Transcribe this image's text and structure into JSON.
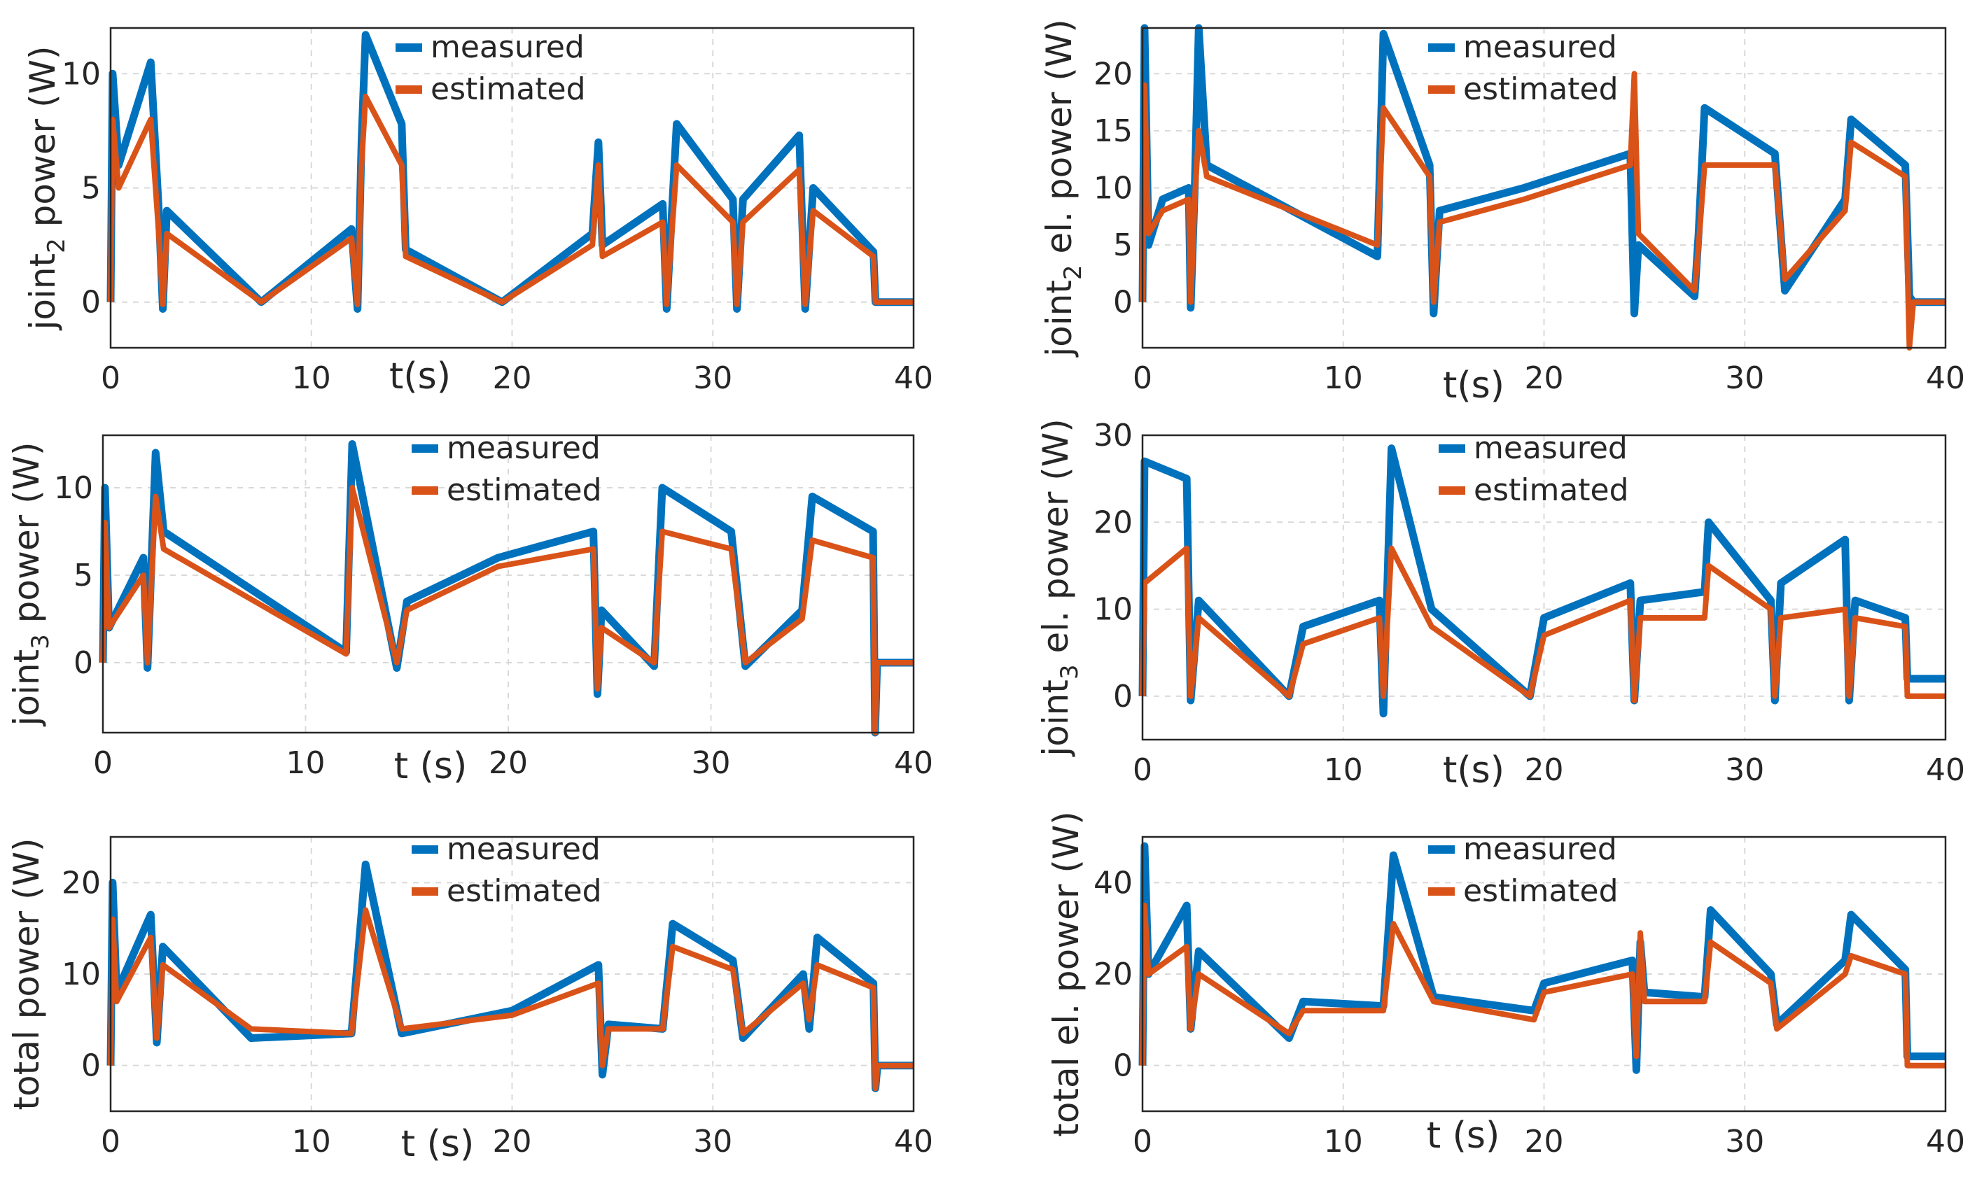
{
  "colors": {
    "measured": "#0072BD",
    "estimated": "#D95319",
    "grid": "#d9d9d9",
    "axis": "#262626"
  },
  "chart_data": [
    {
      "type": "line",
      "id": "p1",
      "ylabel_pre": "joint",
      "ylabel_sub": "2",
      "ylabel_post": " power (W)",
      "xlabel": "t(s)",
      "xlim": [
        0,
        40
      ],
      "ylim": [
        -2,
        12
      ],
      "xticks": [
        0,
        10,
        20,
        30,
        40
      ],
      "yticks": [
        0,
        5,
        10
      ],
      "legend": [
        "measured",
        "estimated"
      ],
      "estimated": [
        [
          0,
          0
        ],
        [
          0.1,
          8
        ],
        [
          0.4,
          5
        ],
        [
          2,
          8
        ],
        [
          2.4,
          3
        ],
        [
          2.6,
          -0.1
        ],
        [
          2.8,
          3
        ],
        [
          7.5,
          0
        ],
        [
          12,
          2.8
        ],
        [
          12.3,
          -0.1
        ],
        [
          12.5,
          6
        ],
        [
          12.7,
          9
        ],
        [
          14.5,
          6
        ],
        [
          14.7,
          2
        ],
        [
          19.5,
          0
        ],
        [
          24,
          2.5
        ],
        [
          24.3,
          6
        ],
        [
          24.5,
          2
        ],
        [
          27.5,
          3.5
        ],
        [
          27.7,
          -0.1
        ],
        [
          28.2,
          6
        ],
        [
          31,
          3.5
        ],
        [
          31.2,
          -0.1
        ],
        [
          31.5,
          3.5
        ],
        [
          34.3,
          5.8
        ],
        [
          34.6,
          -0.1
        ],
        [
          35,
          4
        ],
        [
          38,
          2
        ],
        [
          38.1,
          0
        ],
        [
          40,
          0
        ]
      ],
      "measured": [
        [
          0,
          0
        ],
        [
          0.1,
          10
        ],
        [
          0.4,
          6
        ],
        [
          2,
          10.5
        ],
        [
          2.4,
          4
        ],
        [
          2.6,
          -0.3
        ],
        [
          2.8,
          4
        ],
        [
          7.5,
          0
        ],
        [
          12,
          3.2
        ],
        [
          12.3,
          -0.3
        ],
        [
          12.5,
          7
        ],
        [
          12.7,
          11.7
        ],
        [
          14.5,
          7.8
        ],
        [
          14.7,
          2.3
        ],
        [
          19.5,
          0
        ],
        [
          24,
          3
        ],
        [
          24.3,
          7
        ],
        [
          24.5,
          2.5
        ],
        [
          27.5,
          4.3
        ],
        [
          27.7,
          -0.3
        ],
        [
          28.2,
          7.8
        ],
        [
          31,
          4.5
        ],
        [
          31.2,
          -0.3
        ],
        [
          31.5,
          4.5
        ],
        [
          34.3,
          7.3
        ],
        [
          34.6,
          -0.3
        ],
        [
          35,
          5
        ],
        [
          38,
          2.2
        ],
        [
          38.1,
          0
        ],
        [
          40,
          0
        ]
      ]
    },
    {
      "type": "line",
      "id": "p2",
      "ylabel_pre": "joint",
      "ylabel_sub": "2",
      "ylabel_post": " el. power (W)",
      "xlabel": "t(s)",
      "xlim": [
        0,
        40
      ],
      "ylim": [
        -4,
        24
      ],
      "xticks": [
        0,
        10,
        20,
        30,
        40
      ],
      "yticks": [
        0,
        5,
        10,
        15,
        20
      ],
      "legend": [
        "measured",
        "estimated"
      ],
      "estimated": [
        [
          0,
          0
        ],
        [
          0.1,
          19
        ],
        [
          0.3,
          6
        ],
        [
          1,
          8
        ],
        [
          2.3,
          9
        ],
        [
          2.4,
          0
        ],
        [
          2.6,
          9
        ],
        [
          2.8,
          15
        ],
        [
          3.2,
          11
        ],
        [
          11.7,
          5
        ],
        [
          12,
          17
        ],
        [
          14.3,
          11
        ],
        [
          14.5,
          0
        ],
        [
          14.8,
          7
        ],
        [
          19,
          9
        ],
        [
          24.3,
          12
        ],
        [
          24.5,
          20
        ],
        [
          24.7,
          6
        ],
        [
          27.5,
          1
        ],
        [
          27.7,
          5
        ],
        [
          28,
          12
        ],
        [
          31.5,
          12
        ],
        [
          32,
          2
        ],
        [
          35,
          8
        ],
        [
          35.3,
          14
        ],
        [
          38,
          11
        ],
        [
          38.2,
          -4
        ],
        [
          38.4,
          0
        ],
        [
          40,
          0
        ]
      ],
      "measured": [
        [
          0,
          0
        ],
        [
          0.1,
          24
        ],
        [
          0.3,
          5
        ],
        [
          1,
          9
        ],
        [
          2.3,
          10
        ],
        [
          2.4,
          -0.5
        ],
        [
          2.6,
          10
        ],
        [
          2.8,
          24
        ],
        [
          3.2,
          12
        ],
        [
          11.7,
          4
        ],
        [
          12,
          23.5
        ],
        [
          14.3,
          12
        ],
        [
          14.5,
          -1
        ],
        [
          14.8,
          8
        ],
        [
          19,
          10
        ],
        [
          24.3,
          13
        ],
        [
          24.5,
          -1
        ],
        [
          24.7,
          5
        ],
        [
          27.5,
          0.5
        ],
        [
          27.7,
          6
        ],
        [
          28,
          17
        ],
        [
          31.5,
          13
        ],
        [
          32,
          1
        ],
        [
          35,
          9
        ],
        [
          35.3,
          16
        ],
        [
          38,
          12
        ],
        [
          38.2,
          0.5
        ],
        [
          38.4,
          0
        ],
        [
          40,
          0
        ]
      ]
    },
    {
      "type": "line",
      "id": "p3",
      "ylabel_pre": "joint",
      "ylabel_sub": "3",
      "ylabel_post": " power (W)",
      "xlabel": "t (s)",
      "xlim": [
        0,
        40
      ],
      "ylim": [
        -4,
        13
      ],
      "xticks": [
        0,
        10,
        20,
        30,
        40
      ],
      "yticks": [
        0,
        5,
        10
      ],
      "legend": [
        "measured",
        "estimated"
      ],
      "estimated": [
        [
          0,
          0
        ],
        [
          0.1,
          8
        ],
        [
          0.3,
          2
        ],
        [
          2,
          5
        ],
        [
          2.2,
          0
        ],
        [
          2.6,
          9.5
        ],
        [
          3,
          6.5
        ],
        [
          12,
          0.5
        ],
        [
          12.3,
          10
        ],
        [
          14.5,
          0
        ],
        [
          15,
          3
        ],
        [
          19.5,
          5.5
        ],
        [
          24.2,
          6.5
        ],
        [
          24.4,
          -1.5
        ],
        [
          24.6,
          2
        ],
        [
          27.2,
          0
        ],
        [
          27.6,
          7.5
        ],
        [
          31,
          6.5
        ],
        [
          31.7,
          0
        ],
        [
          34.5,
          2.5
        ],
        [
          35,
          7
        ],
        [
          38,
          6
        ],
        [
          38.1,
          -4
        ],
        [
          38.2,
          0
        ],
        [
          40,
          0
        ]
      ],
      "measured": [
        [
          0,
          0
        ],
        [
          0.1,
          10
        ],
        [
          0.3,
          2
        ],
        [
          2,
          6
        ],
        [
          2.2,
          -0.3
        ],
        [
          2.6,
          12
        ],
        [
          3,
          7.5
        ],
        [
          12,
          0.6
        ],
        [
          12.3,
          12.5
        ],
        [
          14.5,
          -0.3
        ],
        [
          15,
          3.5
        ],
        [
          19.5,
          6
        ],
        [
          24.2,
          7.5
        ],
        [
          24.4,
          -1.8
        ],
        [
          24.6,
          3
        ],
        [
          27.2,
          -0.2
        ],
        [
          27.6,
          10
        ],
        [
          31,
          7.5
        ],
        [
          31.7,
          -0.2
        ],
        [
          34.5,
          3
        ],
        [
          35,
          9.5
        ],
        [
          38,
          7.5
        ],
        [
          38.1,
          -4
        ],
        [
          38.2,
          0
        ],
        [
          40,
          0
        ]
      ]
    },
    {
      "type": "line",
      "id": "p4",
      "ylabel_pre": "joint",
      "ylabel_sub": "3",
      "ylabel_post": " el. power (W)",
      "xlabel": "t(s)",
      "xlim": [
        0,
        40
      ],
      "ylim": [
        -5,
        30
      ],
      "xticks": [
        0,
        10,
        20,
        30,
        40
      ],
      "yticks": [
        0,
        10,
        20,
        30
      ],
      "legend": [
        "measured",
        "estimated"
      ],
      "estimated": [
        [
          0,
          0
        ],
        [
          0.1,
          13
        ],
        [
          2.2,
          17
        ],
        [
          2.4,
          0
        ],
        [
          2.8,
          9
        ],
        [
          7.3,
          0
        ],
        [
          8,
          6
        ],
        [
          11.8,
          9
        ],
        [
          12,
          0
        ],
        [
          12.4,
          17
        ],
        [
          14.4,
          8
        ],
        [
          19.3,
          0
        ],
        [
          20,
          7
        ],
        [
          24.3,
          11
        ],
        [
          24.5,
          -0.5
        ],
        [
          24.8,
          9
        ],
        [
          28,
          9
        ],
        [
          28.2,
          15
        ],
        [
          31.3,
          10
        ],
        [
          31.5,
          0
        ],
        [
          31.8,
          9
        ],
        [
          35,
          10
        ],
        [
          35.2,
          0
        ],
        [
          35.5,
          9
        ],
        [
          38,
          8
        ],
        [
          38.1,
          0
        ],
        [
          40,
          0
        ]
      ],
      "measured": [
        [
          0,
          0
        ],
        [
          0.1,
          27
        ],
        [
          2.2,
          25
        ],
        [
          2.4,
          -0.5
        ],
        [
          2.8,
          11
        ],
        [
          7.3,
          0
        ],
        [
          8,
          8
        ],
        [
          11.8,
          11
        ],
        [
          12,
          -2
        ],
        [
          12.4,
          28.5
        ],
        [
          14.4,
          10
        ],
        [
          19.3,
          0
        ],
        [
          20,
          9
        ],
        [
          24.3,
          13
        ],
        [
          24.5,
          -0.5
        ],
        [
          24.8,
          11
        ],
        [
          28,
          12
        ],
        [
          28.2,
          20
        ],
        [
          31.3,
          11
        ],
        [
          31.5,
          -0.5
        ],
        [
          31.8,
          13
        ],
        [
          35,
          18
        ],
        [
          35.2,
          -0.5
        ],
        [
          35.5,
          11
        ],
        [
          38,
          9
        ],
        [
          38.1,
          2
        ],
        [
          40,
          2
        ]
      ]
    },
    {
      "type": "line",
      "id": "p5",
      "ylabel_pre": "total power (W)",
      "ylabel_sub": "",
      "ylabel_post": "",
      "xlabel": "t (s)",
      "xlim": [
        0,
        40
      ],
      "ylim": [
        -5,
        25
      ],
      "xticks": [
        0,
        10,
        20,
        30,
        40
      ],
      "yticks": [
        0,
        10,
        20
      ],
      "legend": [
        "measured",
        "estimated"
      ],
      "estimated": [
        [
          0,
          0
        ],
        [
          0.1,
          16
        ],
        [
          0.3,
          7
        ],
        [
          2,
          14
        ],
        [
          2.3,
          3
        ],
        [
          2.6,
          11
        ],
        [
          7,
          4
        ],
        [
          12,
          3.5
        ],
        [
          12.7,
          17
        ],
        [
          14.5,
          4
        ],
        [
          20,
          5.5
        ],
        [
          24.3,
          9
        ],
        [
          24.5,
          0
        ],
        [
          24.8,
          4
        ],
        [
          27.5,
          4
        ],
        [
          28,
          13
        ],
        [
          31,
          10.5
        ],
        [
          31.5,
          3.5
        ],
        [
          34.5,
          9
        ],
        [
          34.8,
          5
        ],
        [
          35.2,
          11
        ],
        [
          38,
          8.5
        ],
        [
          38.1,
          -2.5
        ],
        [
          38.2,
          0
        ],
        [
          40,
          0
        ]
      ],
      "measured": [
        [
          0,
          0
        ],
        [
          0.1,
          20
        ],
        [
          0.3,
          8
        ],
        [
          2,
          16.5
        ],
        [
          2.3,
          2.5
        ],
        [
          2.6,
          13
        ],
        [
          7,
          3
        ],
        [
          12,
          3.5
        ],
        [
          12.7,
          22
        ],
        [
          14.5,
          3.5
        ],
        [
          20,
          6
        ],
        [
          24.3,
          11
        ],
        [
          24.5,
          -1
        ],
        [
          24.8,
          4.5
        ],
        [
          27.5,
          4
        ],
        [
          28,
          15.5
        ],
        [
          31,
          11.5
        ],
        [
          31.5,
          3
        ],
        [
          34.5,
          10
        ],
        [
          34.8,
          4
        ],
        [
          35.2,
          14
        ],
        [
          38,
          9
        ],
        [
          38.1,
          -2.5
        ],
        [
          38.2,
          0
        ],
        [
          40,
          0
        ]
      ]
    },
    {
      "type": "line",
      "id": "p6",
      "ylabel_pre": "total el. power (W)",
      "ylabel_sub": "",
      "ylabel_post": "",
      "xlabel": "t (s)",
      "xlim": [
        0,
        40
      ],
      "ylim": [
        -10,
        50
      ],
      "xticks": [
        0,
        10,
        20,
        30,
        40
      ],
      "yticks": [
        0,
        20,
        40
      ],
      "legend": [
        "measured",
        "estimated"
      ],
      "estimated": [
        [
          0,
          0
        ],
        [
          0.1,
          35
        ],
        [
          0.3,
          20
        ],
        [
          2.2,
          26
        ],
        [
          2.4,
          8
        ],
        [
          2.8,
          20
        ],
        [
          7.3,
          7
        ],
        [
          8,
          12
        ],
        [
          12,
          12
        ],
        [
          12.5,
          31
        ],
        [
          14.5,
          14
        ],
        [
          19.5,
          10
        ],
        [
          20,
          16
        ],
        [
          24.4,
          20
        ],
        [
          24.6,
          2
        ],
        [
          24.8,
          29
        ],
        [
          25,
          14
        ],
        [
          28,
          14
        ],
        [
          28.3,
          27
        ],
        [
          31.3,
          18
        ],
        [
          31.6,
          8
        ],
        [
          35,
          20
        ],
        [
          35.3,
          24
        ],
        [
          38,
          20
        ],
        [
          38.1,
          0
        ],
        [
          40,
          0
        ]
      ],
      "measured": [
        [
          0,
          0
        ],
        [
          0.1,
          48
        ],
        [
          0.3,
          20
        ],
        [
          2.2,
          35
        ],
        [
          2.4,
          8
        ],
        [
          2.8,
          25
        ],
        [
          7.3,
          6
        ],
        [
          8,
          14
        ],
        [
          12,
          13
        ],
        [
          12.5,
          46
        ],
        [
          14.5,
          15
        ],
        [
          19.5,
          12
        ],
        [
          20,
          18
        ],
        [
          24.4,
          23
        ],
        [
          24.6,
          -1
        ],
        [
          24.8,
          27
        ],
        [
          25,
          16
        ],
        [
          28,
          15
        ],
        [
          28.3,
          34
        ],
        [
          31.3,
          20
        ],
        [
          31.6,
          9
        ],
        [
          35,
          23
        ],
        [
          35.3,
          33
        ],
        [
          38,
          21
        ],
        [
          38.1,
          2
        ],
        [
          40,
          2
        ]
      ]
    }
  ]
}
